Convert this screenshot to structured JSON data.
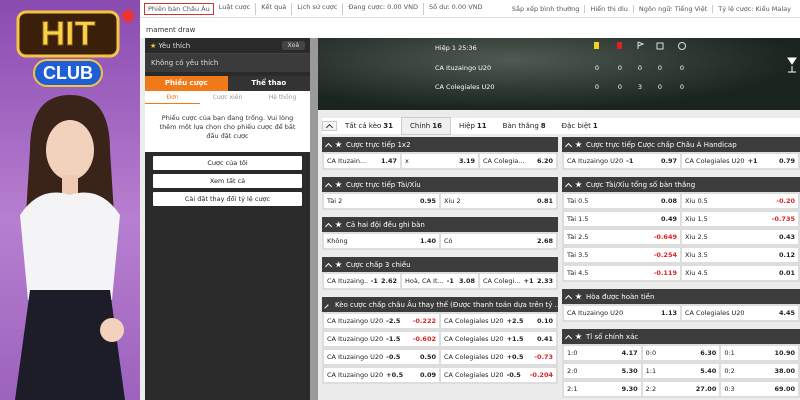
{
  "logo": {
    "top": "HIT",
    "bottom": "CLUB"
  },
  "top_nav": {
    "left": [
      "Phiên bản Châu Âu",
      "Luật cược",
      "Kết quả",
      "Lịch sử cược",
      "Đang cược: 0.00 VND",
      "Số dư: 0.00 VND"
    ],
    "right": [
      "Sắp xếp bình thường",
      "Hiển thị dìu",
      "Ngôn ngữ: Tiếng Việt",
      "Tỷ lệ cược:  Kiểu Malay"
    ]
  },
  "breadcrumb": "rnament draw",
  "sidebar": {
    "favorites_title": "Yêu thích",
    "clear": "Xoá",
    "empty_favorites": "Không có yêu thích",
    "tabs": [
      "Phiếu cược",
      "Thể thao"
    ],
    "subtabs": [
      "Đơn",
      "Cược xiên",
      "Hệ thống"
    ],
    "empty_slip": "Phiếu cược của bạn đang trống. Vui lòng thêm một lựa chọn cho phiếu cược để bắt đầu đặt cược",
    "buttons": [
      "Cược của tôi",
      "Xem tất cả",
      "Cài đặt thay đổi tỷ lệ cược"
    ]
  },
  "scoreboard": {
    "clock": "Hiệp 1 25:36",
    "teams": [
      {
        "name": "CA Ituzaingo U20",
        "stats": [
          "0",
          "0",
          "0",
          "0",
          "0"
        ]
      },
      {
        "name": "CA Colegiales U20",
        "stats": [
          "0",
          "0",
          "3",
          "0",
          "0"
        ]
      }
    ]
  },
  "market_tabs": [
    {
      "label": "Tất cả kèo",
      "count": "31"
    },
    {
      "label": "Chính",
      "count": "16"
    },
    {
      "label": "Hiệp",
      "count": "11"
    },
    {
      "label": "Bàn thắng",
      "count": "8"
    },
    {
      "label": "Đặc biệt",
      "count": "1"
    }
  ],
  "markets_left": [
    {
      "title": "Cược trực tiếp 1x2",
      "rows": [
        [
          {
            "label": "CA Ituzain...",
            "odd": "1.47"
          },
          {
            "label": "x",
            "odd": "3.19"
          },
          {
            "label": "CA Colegia...",
            "odd": "6.20"
          }
        ]
      ]
    },
    {
      "title": "Cược trực tiếp Tài/Xỉu",
      "rows": [
        [
          {
            "label": "Tài 2",
            "odd": "0.95"
          },
          {
            "label": "Xỉu 2",
            "odd": "0.81"
          }
        ]
      ]
    },
    {
      "title": "Cả hai đội đều ghi bàn",
      "rows": [
        [
          {
            "label": "Không",
            "odd": "1.40"
          },
          {
            "label": "Có",
            "odd": "2.68"
          }
        ]
      ]
    },
    {
      "title": "Cược chấp 3 chiều",
      "rows": [
        [
          {
            "label": "CA Ituzaing...",
            "line": "-1",
            "odd": "2.62"
          },
          {
            "label": "Hoà, CA It...",
            "line": "-1",
            "odd": "3.08"
          },
          {
            "label": "CA Colegi...",
            "line": "+1",
            "odd": "2.33"
          }
        ]
      ]
    },
    {
      "title": "Kèo cược chấp châu Âu thay thế (Được thanh toán dựa trên tỷ ...",
      "rows": [
        [
          {
            "label": "CA Ituzaingo U20",
            "line": "-2.5",
            "odd": "-0.222"
          },
          {
            "label": "CA Colegiales U20",
            "line": "+2.5",
            "odd": "0.10"
          }
        ],
        [
          {
            "label": "CA Ituzaingo U20",
            "line": "-1.5",
            "odd": "-0.602"
          },
          {
            "label": "CA Colegiales U20",
            "line": "+1.5",
            "odd": "0.41"
          }
        ],
        [
          {
            "label": "CA Ituzaingo U20",
            "line": "-0.5",
            "odd": "0.50"
          },
          {
            "label": "CA Colegiales U20",
            "line": "+0.5",
            "odd": "-0.73"
          }
        ],
        [
          {
            "label": "CA Ituzaingo U20",
            "line": "+0.5",
            "odd": "0.09"
          },
          {
            "label": "CA Colegiales U20",
            "line": "-0.5",
            "odd": "-0.204"
          }
        ]
      ]
    }
  ],
  "markets_right": [
    {
      "title": "Cược trực tiếp Cược chấp Châu Á Handicap",
      "rows": [
        [
          {
            "label": "CA Ituzaingo U20",
            "line": "-1",
            "odd": "0.97"
          },
          {
            "label": "CA Colegiales U20",
            "line": "+1",
            "odd": "0.79"
          }
        ]
      ]
    },
    {
      "title": "Cược Tài/Xỉu tổng số bàn thắng",
      "rows": [
        [
          {
            "label": "Tài 0.5",
            "odd": "0.08"
          },
          {
            "label": "Xỉu 0.5",
            "odd": "-0.20"
          }
        ],
        [
          {
            "label": "Tài 1.5",
            "odd": "0.49"
          },
          {
            "label": "Xỉu 1.5",
            "odd": "-0.735"
          }
        ],
        [
          {
            "label": "Tài 2.5",
            "odd": "-0.649"
          },
          {
            "label": "Xỉu 2.5",
            "odd": "0.43"
          }
        ],
        [
          {
            "label": "Tài 3.5",
            "odd": "-0.254"
          },
          {
            "label": "Xỉu 3.5",
            "odd": "0.12"
          }
        ],
        [
          {
            "label": "Tài 4.5",
            "odd": "-0.119"
          },
          {
            "label": "Xỉu 4.5",
            "odd": "0.01"
          }
        ]
      ]
    },
    {
      "title": "Hòa được hoàn tiền",
      "rows": [
        [
          {
            "label": "CA Ituzaingo U20",
            "odd": "1.13"
          },
          {
            "label": "CA Colegiales U20",
            "odd": "4.45"
          }
        ]
      ]
    },
    {
      "title": "Tỉ số chính xác",
      "rows": [
        [
          {
            "label": "1:0",
            "odd": "4.17"
          },
          {
            "label": "0:0",
            "odd": "6.30"
          },
          {
            "label": "0:1",
            "odd": "10.90"
          }
        ],
        [
          {
            "label": "2:0",
            "odd": "5.30"
          },
          {
            "label": "1:1",
            "odd": "5.40"
          },
          {
            "label": "0:2",
            "odd": "38.00"
          }
        ],
        [
          {
            "label": "2:1",
            "odd": "9.30"
          },
          {
            "label": "2:2",
            "odd": "27.00"
          },
          {
            "label": "0:3",
            "odd": "69.00"
          }
        ]
      ]
    }
  ]
}
